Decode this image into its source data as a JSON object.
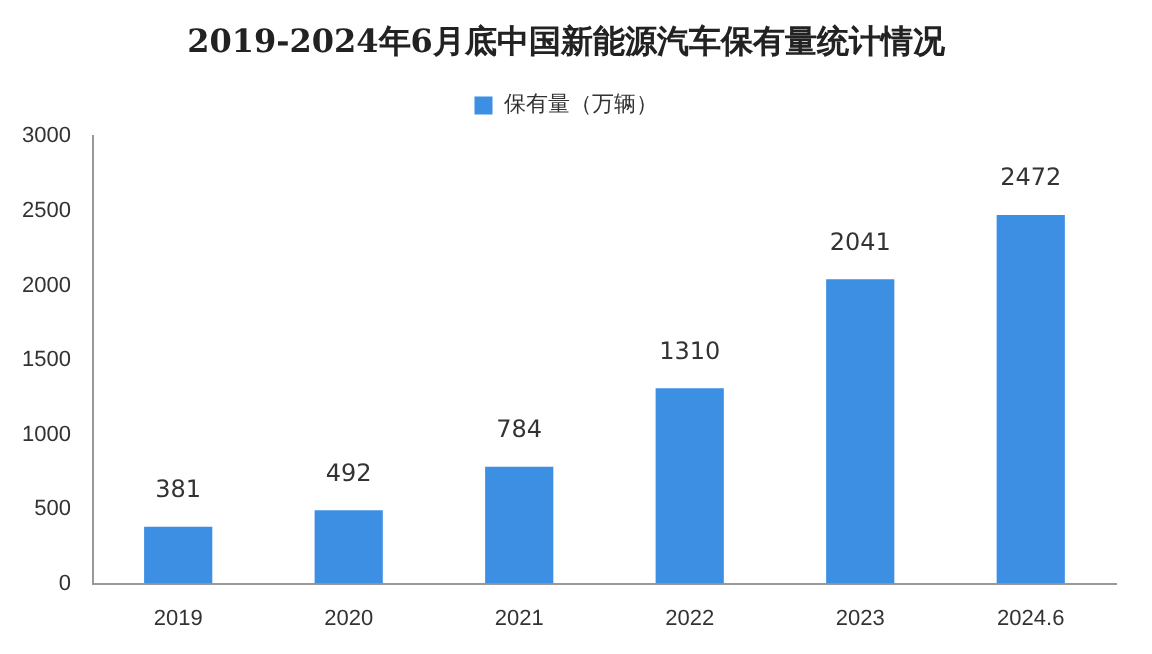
{
  "chart_data": {
    "type": "bar",
    "title": "2019-2024年6月底中国新能源汽车保有量统计情况",
    "categories": [
      "2019",
      "2020",
      "2021",
      "2022",
      "2023",
      "2024.6"
    ],
    "series": [
      {
        "name": "保有量（万辆）",
        "color": "#3d8fe3",
        "values": [
          381,
          492,
          784,
          1310,
          2041,
          2472
        ]
      }
    ],
    "ylim": [
      0,
      3000
    ],
    "yticks": [
      0,
      500,
      1000,
      1500,
      2000,
      2500,
      3000
    ],
    "grid": false,
    "legend": "top",
    "data_labels": true
  }
}
